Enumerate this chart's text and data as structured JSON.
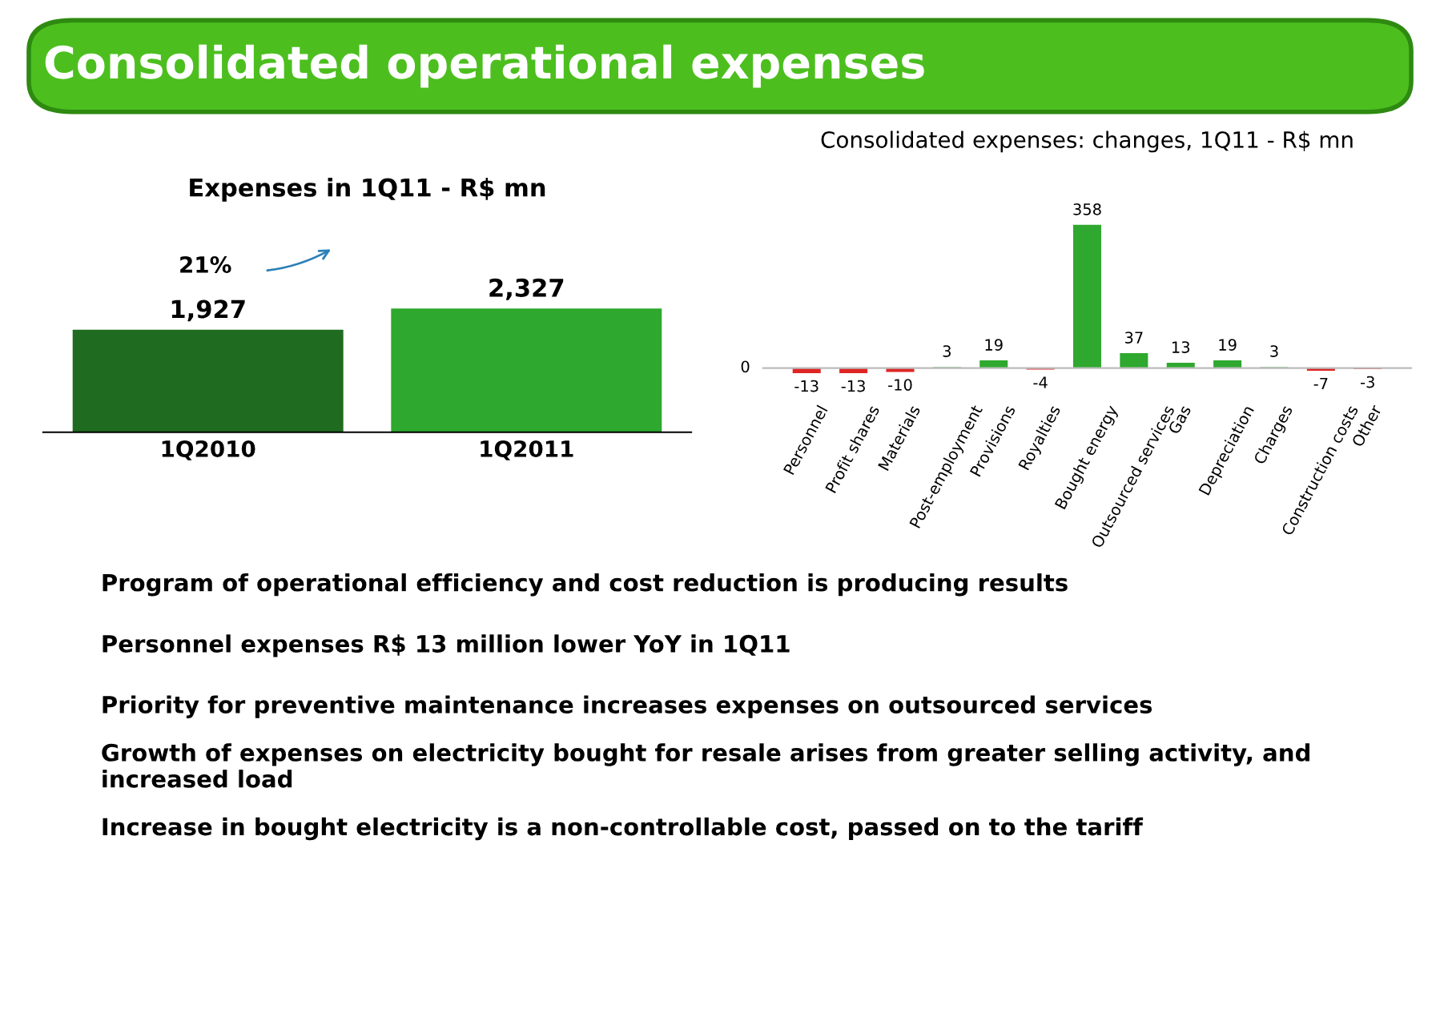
{
  "chart_data": [
    {
      "type": "other",
      "title": "Consolidated operational expenses",
      "annotations": [
        "Program of operational efficiency and cost reduction is producing results",
        "Personnel expenses R$ 13 million lower YoY in 1Q11",
        "Priority for preventive maintenance increases expenses on outsourced services",
        "Growth of expenses on electricity bought for resale arises from greater selling activity, and increased load",
        "Increase in bought electricity is a non-controllable cost, passed on to the tariff"
      ]
    },
    {
      "type": "bar",
      "title": "Expenses in 1Q11 - R$ mn",
      "categories": [
        "1Q2010",
        "1Q2011"
      ],
      "values": [
        1927,
        2327
      ],
      "colors": [
        "#1f6b1f",
        "#2ea82e"
      ],
      "value_labels": [
        "1,927",
        "2,327"
      ],
      "annotations": [
        "21%"
      ]
    },
    {
      "type": "bar",
      "title": "Consolidated expenses: changes, 1Q11 - R$ mn",
      "categories": [
        "Personnel",
        "Profit shares",
        "Materials",
        "Post-employment",
        "Provisions",
        "Royalties",
        "Bought energy",
        "Outsourced services",
        "Gas",
        "Depreciation",
        "Charges",
        "Construction costs",
        "Other"
      ],
      "values": [
        -13,
        -13,
        -10,
        3,
        19,
        -4,
        358,
        37,
        13,
        19,
        3,
        -7,
        -3
      ],
      "colors": [
        "#e02424",
        "#e02424",
        "#e02424",
        "#9fd09f",
        "#2ea82e",
        "#e02424",
        "#2ea82e",
        "#2ea82e",
        "#2ea82e",
        "#2ea82e",
        "#9fd09f",
        "#e02424",
        "#e02424"
      ],
      "data_labels": true,
      "annotations": [
        "0"
      ]
    }
  ]
}
